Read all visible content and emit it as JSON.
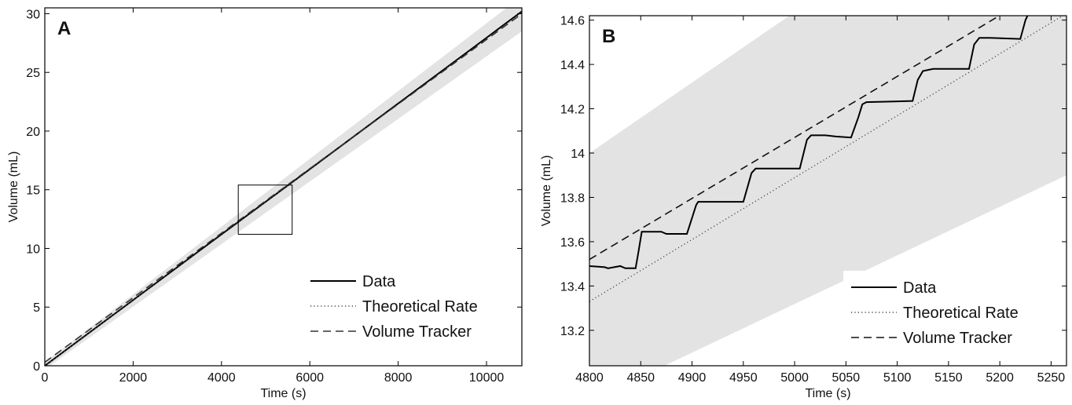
{
  "chart_data": [
    {
      "panel_label": "A",
      "type": "line",
      "xlabel": "Time (s)",
      "ylabel": "Volume (mL)",
      "xlim": [
        0,
        10800
      ],
      "ylim": [
        0,
        30.5
      ],
      "xticks": [
        0,
        2000,
        4000,
        6000,
        8000,
        10000
      ],
      "yticks": [
        0,
        5,
        10,
        15,
        20,
        25,
        30
      ],
      "grid": false,
      "legend_position": "bottom-right",
      "band": {
        "color": "#e3e3e3",
        "upper": [
          [
            0,
            0.3
          ],
          [
            10800,
            31.5
          ]
        ],
        "lower": [
          [
            0,
            -0.3
          ],
          [
            10800,
            28.5
          ]
        ]
      },
      "zoom_box": {
        "x": [
          4380,
          5600
        ],
        "y": [
          11.2,
          15.4
        ]
      },
      "series": [
        {
          "name": "Data",
          "style": "solid",
          "color": "#000000",
          "x": [
            0,
            2000,
            4000,
            6000,
            8000,
            10000,
            10800
          ],
          "y": [
            0.0,
            5.6,
            11.2,
            16.75,
            22.35,
            27.95,
            30.2
          ]
        },
        {
          "name": "Theoretical Rate",
          "style": "dotted",
          "color": "#444444",
          "x": [
            0,
            10800
          ],
          "y": [
            0.0,
            30.1
          ]
        },
        {
          "name": "Volume Tracker",
          "style": "dashed",
          "color": "#333333",
          "x": [
            0,
            10800
          ],
          "y": [
            0.3,
            30.0
          ]
        }
      ]
    },
    {
      "panel_label": "B",
      "type": "line",
      "xlabel": "Time (s)",
      "ylabel": "Volume (mL)",
      "xlim": [
        4800,
        5265
      ],
      "ylim": [
        13.04,
        14.62
      ],
      "xticks": [
        4800,
        4850,
        4900,
        4950,
        5000,
        5050,
        5100,
        5150,
        5200,
        5250
      ],
      "yticks": [
        13.2,
        13.4,
        13.6,
        13.8,
        14,
        14.2,
        14.4,
        14.6
      ],
      "ytick_labels": [
        "13.2",
        "13.4",
        "13.6",
        "13.8",
        "14",
        "14.2",
        "14.4",
        "14.6"
      ],
      "grid": false,
      "legend_position": "bottom-right",
      "band": {
        "color": "#e3e3e3",
        "upper": [
          [
            4800,
            14.0
          ],
          [
            5265,
            15.48
          ]
        ],
        "lower": [
          [
            4800,
            12.88
          ],
          [
            5265,
            13.9
          ]
        ]
      },
      "series": [
        {
          "name": "Data",
          "style": "solid",
          "color": "#000000",
          "x": [
            4800,
            4815,
            4818,
            4830,
            4835,
            4845,
            4848,
            4851,
            4870,
            4875,
            4895,
            4904,
            4906,
            4950,
            4958,
            4962,
            5005,
            5012,
            5016,
            5030,
            5040,
            5055,
            5062,
            5066,
            5070,
            5115,
            5120,
            5125,
            5135,
            5170,
            5175,
            5180,
            5190,
            5220,
            5225,
            5228
          ],
          "y": [
            13.49,
            13.485,
            13.48,
            13.49,
            13.48,
            13.48,
            13.56,
            13.645,
            13.645,
            13.635,
            13.635,
            13.765,
            13.78,
            13.78,
            13.91,
            13.93,
            13.93,
            14.06,
            14.08,
            14.08,
            14.075,
            14.07,
            14.16,
            14.22,
            14.23,
            14.235,
            14.33,
            14.37,
            14.38,
            14.38,
            14.49,
            14.52,
            14.52,
            14.515,
            14.6,
            14.63
          ]
        },
        {
          "name": "Theoretical Rate",
          "style": "dotted",
          "color": "#444444",
          "x": [
            4800,
            5265
          ],
          "y": [
            13.33,
            14.63
          ]
        },
        {
          "name": "Volume Tracker",
          "style": "dashed",
          "color": "#111111",
          "x": [
            4800,
            5265
          ],
          "y": [
            13.52,
            14.8
          ]
        }
      ]
    }
  ]
}
